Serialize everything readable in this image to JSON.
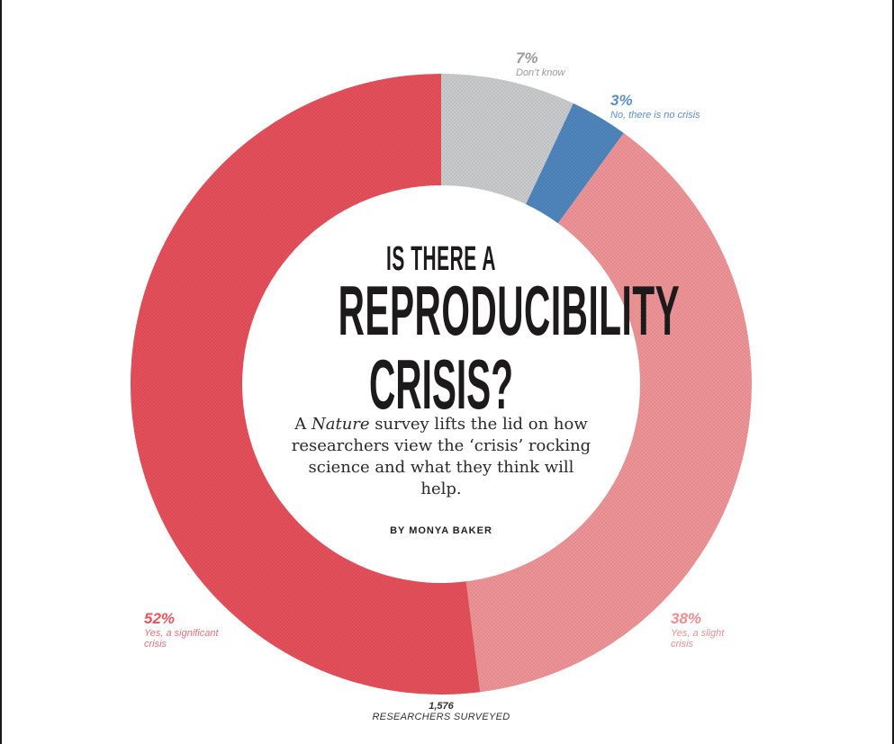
{
  "chart_data": {
    "type": "pie",
    "variant": "donut",
    "title": "Is there a reproducibility crisis?",
    "total_label": "1,576",
    "total_caption": "RESEARCHERS SURVEYED",
    "start_angle": "top, clockwise",
    "slices": [
      {
        "name": "Don't know",
        "value": 7,
        "label": "7%",
        "color": "#c9cbcd",
        "label_color": "#9a9a9a"
      },
      {
        "name": "No, there is no crisis",
        "value": 3,
        "label": "3%",
        "color": "#4f86bd",
        "label_color": "#5b8fc7"
      },
      {
        "name": "Yes, a slight crisis",
        "value": 38,
        "label": "38%",
        "color": "#ee9497",
        "label_color": "#ef8e92"
      },
      {
        "name": "Yes, a significant crisis",
        "value": 52,
        "label": "52%",
        "color": "#e6505a",
        "label_color": "#e8545d"
      }
    ]
  },
  "labels": {
    "dont_know": {
      "pct": "7%",
      "text": "Don’t know"
    },
    "no_crisis": {
      "pct": "3%",
      "text": "No, there is no crisis"
    },
    "significant": {
      "pct": "52%",
      "text1": "Yes, a significant",
      "text2": "crisis"
    },
    "slight": {
      "pct": "38%",
      "text1": "Yes, a slight",
      "text2": "crisis"
    }
  },
  "headline": {
    "line1": "IS THERE A",
    "line2": "REPRODUCIBILITY",
    "line3": "CRISIS?"
  },
  "dek": {
    "pre": "A ",
    "italic": "Nature",
    "post": " survey lifts the lid on how researchers view the ‘crisis’ rocking science and what they think will help."
  },
  "byline": "BY MONYA BAKER",
  "footer": {
    "count": "1,576",
    "caption": "RESEARCHERS SURVEYED"
  }
}
